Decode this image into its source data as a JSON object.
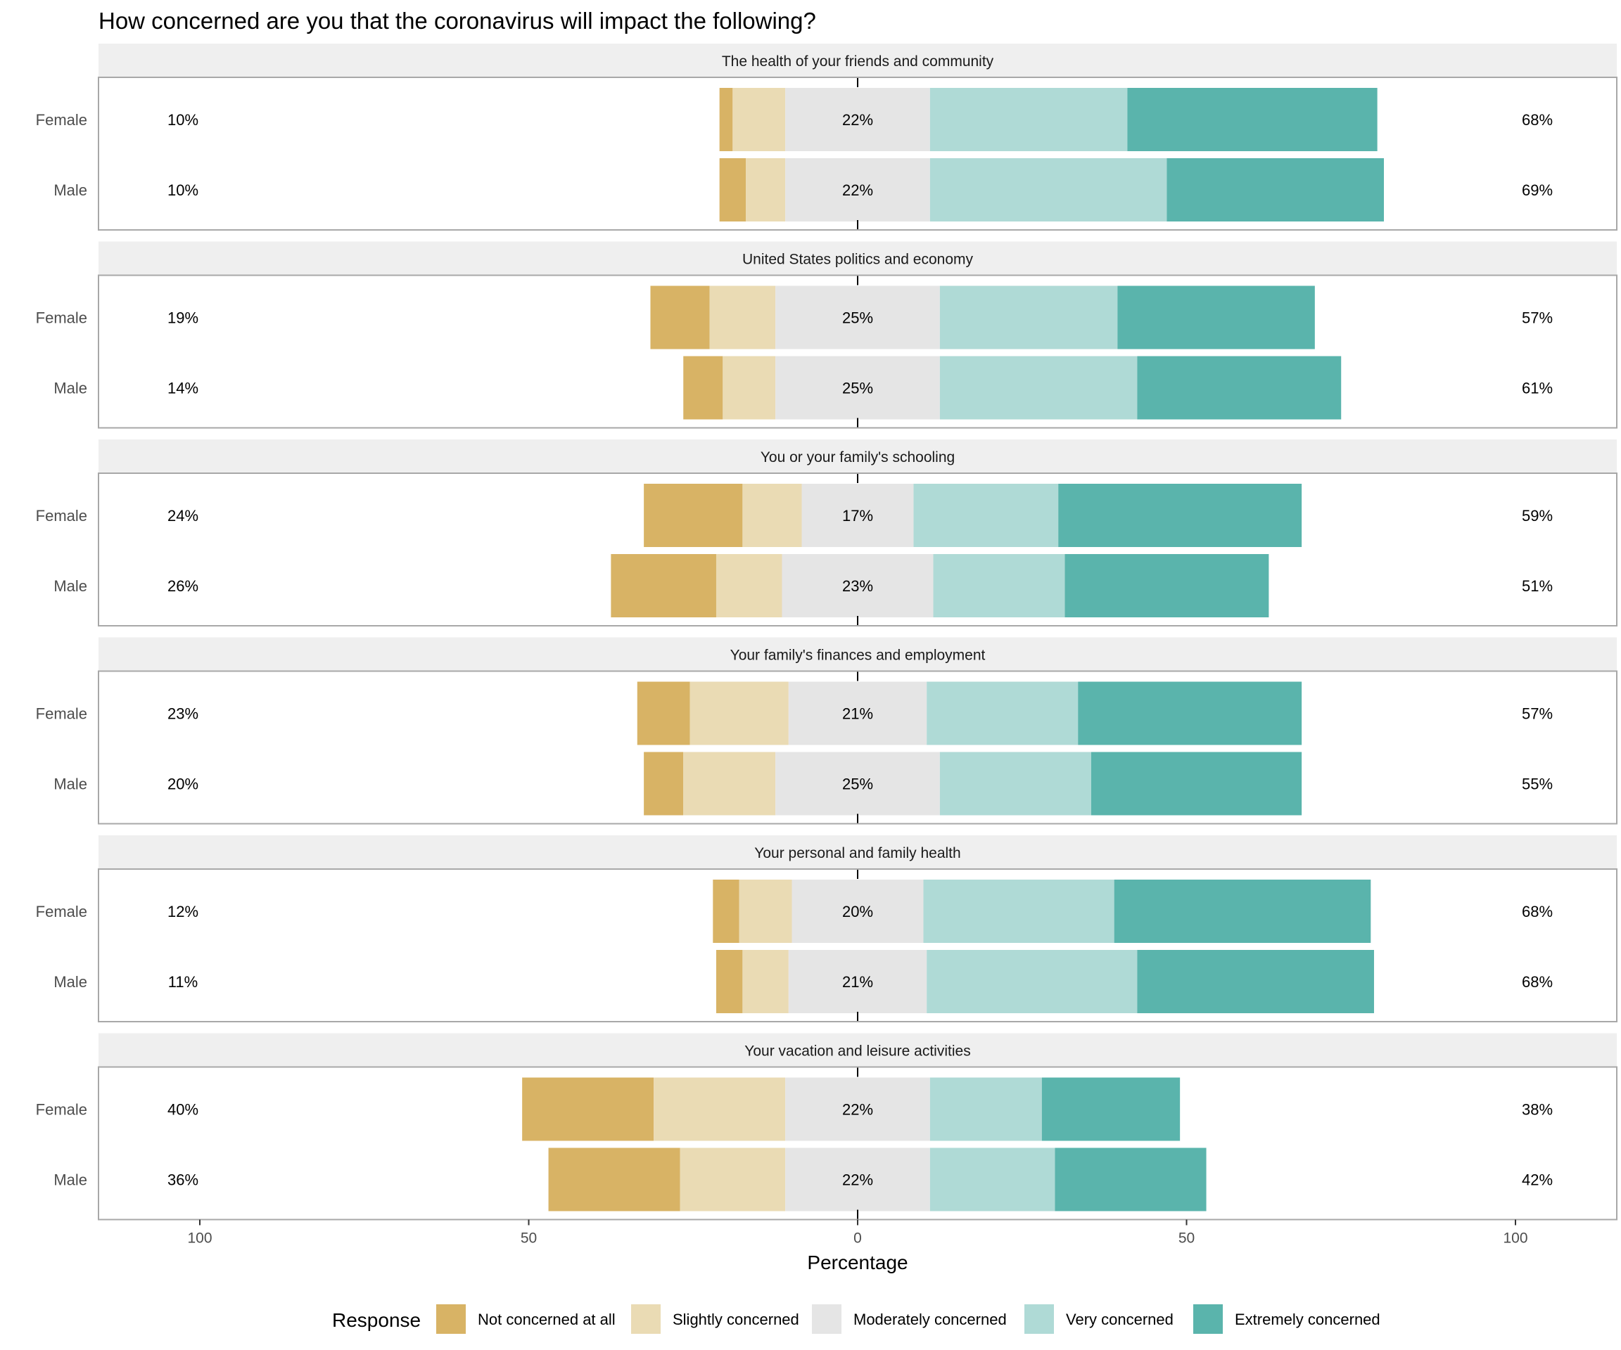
{
  "chart_data": {
    "type": "bar",
    "subtype": "diverging-stacked-likert",
    "title": "How concerned are you that the coronavirus will impact the following?",
    "xlabel": "Percentage",
    "ylabel": "",
    "xlim": [
      -100,
      100
    ],
    "x_ticks": [
      -100,
      -50,
      0,
      50,
      100
    ],
    "x_tick_labels": [
      "100",
      "50",
      "0",
      "50",
      "100"
    ],
    "grid": false,
    "legend": {
      "title": "Response",
      "position": "bottom",
      "entries": [
        {
          "label": "Not concerned at all",
          "color": "#D8B365"
        },
        {
          "label": "Slightly concerned",
          "color": "#EADBB4"
        },
        {
          "label": "Moderately concerned",
          "color": "#E5E5E5"
        },
        {
          "label": "Very concerned",
          "color": "#AFDAD6"
        },
        {
          "label": "Extremely concerned",
          "color": "#5AB4AC"
        }
      ]
    },
    "categories": [
      "Not concerned at all",
      "Slightly concerned",
      "Moderately concerned",
      "Very concerned",
      "Extremely concerned"
    ],
    "panels": [
      {
        "label": "The health of your friends and community",
        "rows": [
          {
            "group": "Female",
            "values": [
              2,
              8,
              22,
              30,
              38
            ],
            "low_label": "10%",
            "mid_label": "22%",
            "high_label": "68%"
          },
          {
            "group": "Male",
            "values": [
              4,
              6,
              22,
              36,
              33
            ],
            "low_label": "10%",
            "mid_label": "22%",
            "high_label": "69%"
          }
        ]
      },
      {
        "label": "United States politics and economy",
        "rows": [
          {
            "group": "Female",
            "values": [
              9,
              10,
              25,
              27,
              30
            ],
            "low_label": "19%",
            "mid_label": "25%",
            "high_label": "57%"
          },
          {
            "group": "Male",
            "values": [
              6,
              8,
              25,
              30,
              31
            ],
            "low_label": "14%",
            "mid_label": "25%",
            "high_label": "61%"
          }
        ]
      },
      {
        "label": "You or your family's schooling",
        "rows": [
          {
            "group": "Female",
            "values": [
              15,
              9,
              17,
              22,
              37
            ],
            "low_label": "24%",
            "mid_label": "17%",
            "high_label": "59%"
          },
          {
            "group": "Male",
            "values": [
              16,
              10,
              23,
              20,
              31
            ],
            "low_label": "26%",
            "mid_label": "23%",
            "high_label": "51%"
          }
        ]
      },
      {
        "label": "Your family's finances and employment",
        "rows": [
          {
            "group": "Female",
            "values": [
              8,
              15,
              21,
              23,
              34
            ],
            "low_label": "23%",
            "mid_label": "21%",
            "high_label": "57%"
          },
          {
            "group": "Male",
            "values": [
              6,
              14,
              25,
              23,
              32
            ],
            "low_label": "20%",
            "mid_label": "25%",
            "high_label": "55%"
          }
        ]
      },
      {
        "label": "Your personal and family health",
        "rows": [
          {
            "group": "Female",
            "values": [
              4,
              8,
              20,
              29,
              39
            ],
            "low_label": "12%",
            "mid_label": "20%",
            "high_label": "68%"
          },
          {
            "group": "Male",
            "values": [
              4,
              7,
              21,
              32,
              36
            ],
            "low_label": "11%",
            "mid_label": "21%",
            "high_label": "68%"
          }
        ]
      },
      {
        "label": "Your vacation and leisure activities",
        "rows": [
          {
            "group": "Female",
            "values": [
              20,
              20,
              22,
              17,
              21
            ],
            "low_label": "40%",
            "mid_label": "22%",
            "high_label": "38%"
          },
          {
            "group": "Male",
            "values": [
              20,
              16,
              22,
              19,
              23
            ],
            "low_label": "36%",
            "mid_label": "22%",
            "high_label": "42%"
          }
        ]
      }
    ]
  }
}
